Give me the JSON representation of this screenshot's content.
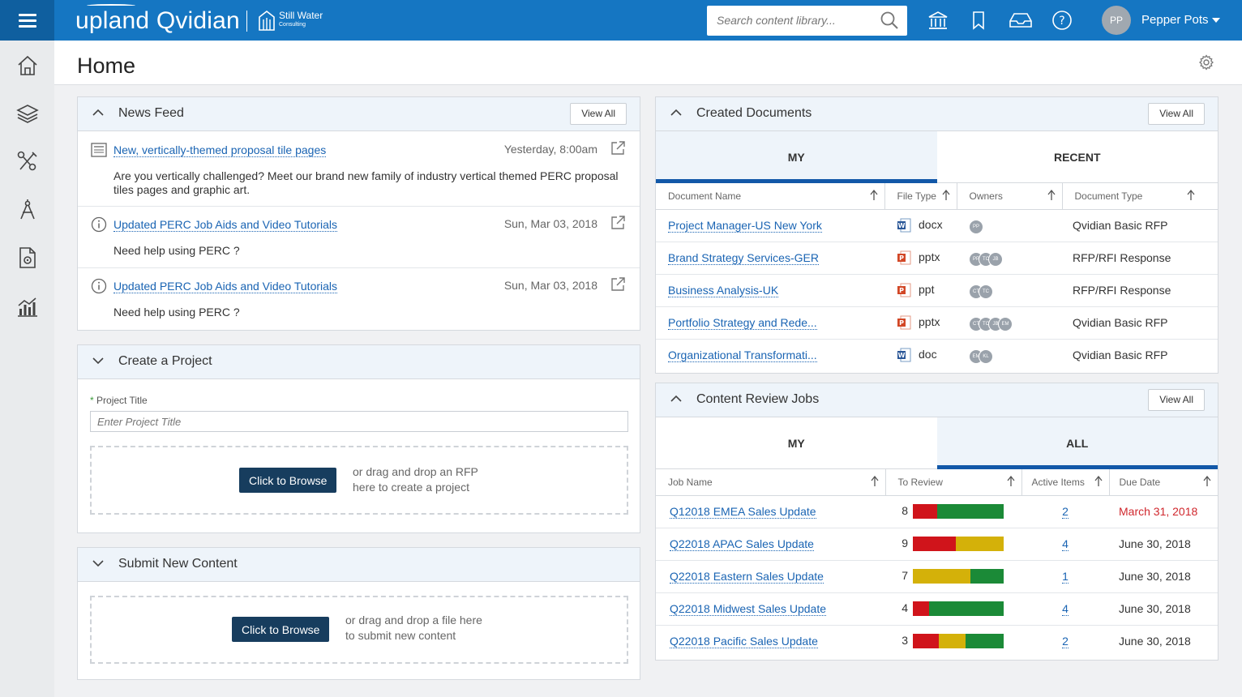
{
  "brand": {
    "product": "upland Qvidian",
    "client_name": "Still Water",
    "client_sub": "Consulting"
  },
  "search": {
    "placeholder": "Search content library..."
  },
  "user": {
    "initials": "PP",
    "name": "Pepper Pots"
  },
  "page": {
    "title": "Home"
  },
  "colors": {
    "topbar": "#1576c2",
    "accent": "#1258a8",
    "browse_button": "#173d5e",
    "bar_red": "#d0141b",
    "bar_yellow": "#d4b109",
    "bar_green": "#1b8a37",
    "due_red": "#d0272d"
  },
  "news_feed": {
    "title": "News Feed",
    "view_all": "View All",
    "items": [
      {
        "icon": "newspaper-icon",
        "link": "New, vertically-themed proposal tile pages",
        "date": "Yesterday, 8:00am",
        "body": "Are you vertically challenged? Meet our brand new family of industry vertical themed PERC proposal tiles pages and graphic art."
      },
      {
        "icon": "info-icon",
        "link": "Updated PERC Job Aids and Video Tutorials",
        "date": "Sun, Mar 03, 2018",
        "body": "Need help using PERC ?"
      },
      {
        "icon": "info-icon",
        "link": "Updated PERC Job Aids and Video Tutorials",
        "date": "Sun, Mar 03, 2018",
        "body": "Need help using PERC ?"
      }
    ]
  },
  "create_project": {
    "title": "Create a Project",
    "required_mark": "*",
    "field_label": "Project Title",
    "field_placeholder": "Enter Project Title",
    "browse_label": "Click to Browse",
    "drop_line1": "or drag and drop an RFP",
    "drop_line2": "here to create a project"
  },
  "submit_content": {
    "title": "Submit New Content",
    "browse_label": "Click to Browse",
    "drop_line1": "or drag and drop a file here",
    "drop_line2": "to submit new content"
  },
  "created_documents": {
    "title": "Created Documents",
    "view_all": "View All",
    "tabs": [
      "MY",
      "RECENT"
    ],
    "columns": [
      "Document Name",
      "File Type",
      "Owners",
      "Document Type"
    ],
    "rows": [
      {
        "name": "Project Manager-US New York",
        "file_type": "docx",
        "file_icon": "word-icon",
        "owners": [
          "PP"
        ],
        "doc_type": "Qvidian Basic RFP"
      },
      {
        "name": "Brand Strategy Services-GER",
        "file_type": "pptx",
        "file_icon": "powerpoint-icon",
        "owners": [
          "PP",
          "TC",
          "JB"
        ],
        "doc_type": "RFP/RFI Response"
      },
      {
        "name": "Business Analysis-UK",
        "file_type": "ppt",
        "file_icon": "powerpoint-icon",
        "owners": [
          "CT",
          "TC"
        ],
        "doc_type": "RFP/RFI Response"
      },
      {
        "name": "Portfolio Strategy and Rede...",
        "file_type": "pptx",
        "file_icon": "powerpoint-icon",
        "owners": [
          "CT",
          "TC",
          "JB",
          "EM"
        ],
        "doc_type": "Qvidian Basic RFP"
      },
      {
        "name": "Organizational Transformati...",
        "file_type": "doc",
        "file_icon": "word-icon",
        "owners": [
          "EM",
          "KL"
        ],
        "doc_type": "Qvidian Basic RFP"
      }
    ]
  },
  "content_review": {
    "title": "Content Review Jobs",
    "view_all": "View All",
    "tabs": [
      "MY",
      "ALL"
    ],
    "columns": [
      "Job Name",
      "To Review",
      "Active Items",
      "Due Date"
    ],
    "rows": [
      {
        "name": "Q12018 EMEA Sales Update",
        "to_review": "8",
        "bar": [
          0.27,
          0,
          0.73
        ],
        "active": "2",
        "due": "March 31, 2018",
        "overdue": true
      },
      {
        "name": "Q22018 APAC Sales Update",
        "to_review": "9",
        "bar": [
          0.47,
          0.53,
          0
        ],
        "active": "4",
        "due": "June 30, 2018",
        "overdue": false
      },
      {
        "name": "Q22018 Eastern Sales Update",
        "to_review": "7",
        "bar": [
          0,
          0.63,
          0.37
        ],
        "active": "1",
        "due": "June 30, 2018",
        "overdue": false
      },
      {
        "name": "Q22018 Midwest Sales Update",
        "to_review": "4",
        "bar": [
          0.18,
          0,
          0.82
        ],
        "active": "4",
        "due": "June 30, 2018",
        "overdue": false
      },
      {
        "name": "Q22018 Pacific Sales Update",
        "to_review": "3",
        "bar": [
          0.29,
          0.29,
          0.42
        ],
        "active": "2",
        "due": "June 30, 2018",
        "overdue": false
      }
    ]
  }
}
